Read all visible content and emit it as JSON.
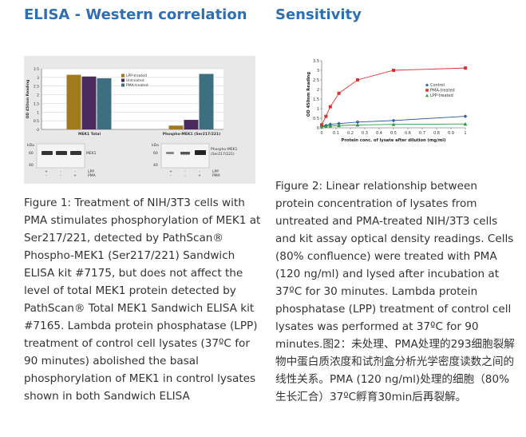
{
  "left": {
    "heading": "ELISA - Western correlation",
    "caption": "Figure 1: Treatment of NIH/3T3 cells with PMA stimulates phosphorylation of MEK1 at Ser217/221, detected by PathScan® Phospho-MEK1 (Ser217/221) Sandwich ELISA kit #7175, but does not affect the level of total MEK1 protein detected by PathScan® Total MEK1 Sandwich ELISA kit #7165. Lambda protein phosphatase (LPP) treatment of control cell lysates (37ºC for 90 minutes) abolished the basal phosphorylation of MEK1 in control lysates shown in both Sandwich ELISA"
  },
  "right": {
    "heading": "Sensitivity",
    "caption": "Figure 2: Linear relationship between protein concentration of lysates from untreated and PMA-treated NIH/3T3 cells and kit assay optical density readings. Cells (80% confluence) were treated with PMA (120 ng/ml) and lysed after incubation at 37ºC for 30 minutes. Lambda protein phosphatase (LPP) treatment of control cell lysates was performed at 37ºC for 90 minutes.图2：未处理、PMA处理的293细胞裂解物中蛋白质浓度和试剂盒分析光学密度读数之间的线性关系。PMA (120 ng/ml)处理的细胞（80%生长汇合）37ºC孵育30min后再裂解。"
  },
  "chart_data": [
    {
      "type": "bar",
      "title": "",
      "ylabel": "OD 450nm Reading",
      "ylim": [
        0,
        3.5
      ],
      "y_ticks": [
        "0",
        "0.5",
        "1",
        "1.5",
        "2",
        "2.5",
        "3",
        "3.5"
      ],
      "categories": [
        "MEK1 Total",
        "Phospho-MEK1 (Ser217/221)"
      ],
      "series": [
        {
          "name": "LPP-treated",
          "color": "#a07a1e",
          "values": [
            3.15,
            0.22
          ]
        },
        {
          "name": "Untreated",
          "color": "#4a2a5e",
          "values": [
            3.05,
            0.55
          ]
        },
        {
          "name": "PMA-treated",
          "color": "#3f6e82",
          "values": [
            2.95,
            3.2
          ]
        }
      ],
      "legend_position": "top-right",
      "blot": {
        "kda_label": "kDa",
        "left_markers": [
          "60",
          "40"
        ],
        "left_label": "MEK1",
        "right_markers": [
          "60",
          "40"
        ],
        "right_label": "Phospho-MEK1 (Ser217/221)",
        "rows": [
          {
            "label": "LPP",
            "marks": [
              "+",
              "-",
              "-"
            ]
          },
          {
            "label": "PMA",
            "marks": [
              "-",
              "-",
              "+"
            ]
          }
        ]
      }
    },
    {
      "type": "line",
      "title": "",
      "xlabel": "Protein conc. of lysate after dilution (mg/ml)",
      "ylabel": "OD 450nm Reading",
      "xlim": [
        0,
        1
      ],
      "ylim": [
        0,
        3.5
      ],
      "x_ticks": [
        "0",
        "0.1",
        "0.2",
        "0.3",
        "0.4",
        "0.5",
        "0.6",
        "0.7",
        "0.8",
        "0.9",
        "1"
      ],
      "y_ticks": [
        "0",
        "0.5",
        "1",
        "1.5",
        "2",
        "2.5",
        "3",
        "3.5"
      ],
      "legend_position": "right",
      "series": [
        {
          "name": "Control",
          "color": "#2a5ca8",
          "marker": "diamond",
          "x": [
            0,
            0.03,
            0.06,
            0.12,
            0.25,
            0.5,
            1
          ],
          "y": [
            0.08,
            0.12,
            0.18,
            0.22,
            0.3,
            0.38,
            0.6
          ]
        },
        {
          "name": "PMA-treated",
          "color": "#e03030",
          "marker": "square",
          "x": [
            0,
            0.03,
            0.06,
            0.12,
            0.25,
            0.5,
            1
          ],
          "y": [
            0.15,
            0.6,
            1.1,
            1.8,
            2.5,
            3.0,
            3.12
          ]
        },
        {
          "name": "LPP-treated",
          "color": "#2a9a3a",
          "marker": "triangle",
          "x": [
            0,
            0.03,
            0.06,
            0.12,
            0.25,
            0.5,
            1
          ],
          "y": [
            0.05,
            0.08,
            0.1,
            0.12,
            0.15,
            0.18,
            0.2
          ]
        }
      ]
    }
  ]
}
